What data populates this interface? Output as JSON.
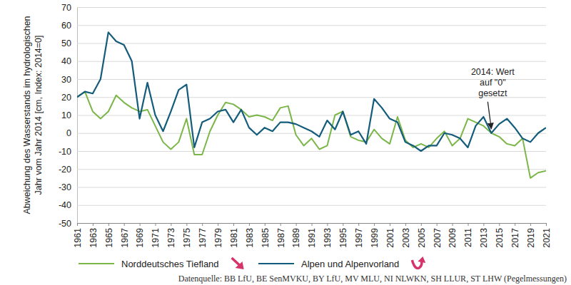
{
  "chart_data": {
    "type": "line",
    "y_label": [
      "Abweichung des Wasserstands im hydrologischen",
      "Jahr vom Jahr 2014 [cm, Index: 2014=0]"
    ],
    "x": [
      1961,
      1962,
      1963,
      1964,
      1965,
      1966,
      1967,
      1968,
      1969,
      1970,
      1971,
      1972,
      1973,
      1974,
      1975,
      1976,
      1977,
      1978,
      1979,
      1980,
      1981,
      1982,
      1983,
      1984,
      1985,
      1986,
      1987,
      1988,
      1989,
      1990,
      1991,
      1992,
      1993,
      1994,
      1995,
      1996,
      1997,
      1998,
      1999,
      2000,
      2001,
      2002,
      2003,
      2004,
      2005,
      2006,
      2007,
      2008,
      2009,
      2010,
      2011,
      2012,
      2013,
      2014,
      2015,
      2016,
      2017,
      2018,
      2019,
      2020,
      2021
    ],
    "series": [
      {
        "name": "Norddeutsches Tiefland",
        "color": "#7ab648",
        "values": [
          20,
          23,
          12,
          8,
          12,
          21,
          17,
          14,
          12,
          13,
          4,
          -5,
          -9,
          -5,
          8,
          -12,
          -12,
          1,
          10,
          17,
          16,
          13,
          9,
          10,
          9,
          7,
          14,
          15,
          -1,
          -7,
          -3,
          -9,
          -7,
          10,
          12,
          -2,
          -4,
          -5,
          2,
          -3,
          -6,
          9,
          -4,
          -8,
          -6,
          -8,
          -3,
          1,
          -7,
          -3,
          8,
          6,
          4,
          0,
          -2,
          -6,
          -7,
          -3,
          -25,
          -22,
          -21
        ]
      },
      {
        "name": "Alpen und Alpenvorland",
        "color": "#135c7c",
        "values": [
          20,
          23,
          22,
          30,
          56,
          51,
          49,
          40,
          8,
          28,
          10,
          1,
          12,
          24,
          27,
          -8,
          6,
          8,
          12,
          13,
          6,
          13,
          3,
          -1,
          3,
          1,
          6,
          6,
          5,
          3,
          1,
          -2,
          7,
          2,
          12,
          -1,
          1,
          -6,
          19,
          14,
          8,
          6,
          -5,
          -7,
          -10,
          -7,
          -7,
          0,
          -1,
          -3,
          -8,
          4,
          9,
          0,
          5,
          8,
          3,
          -3,
          -5,
          0,
          3
        ]
      }
    ],
    "xlim": [
      1961,
      2021
    ],
    "xticks": [
      1961,
      1963,
      1965,
      1967,
      1969,
      1971,
      1973,
      1975,
      1977,
      1979,
      1981,
      1983,
      1985,
      1987,
      1989,
      1991,
      1993,
      1995,
      1997,
      1999,
      2001,
      2003,
      2005,
      2007,
      2009,
      2011,
      2013,
      2015,
      2017,
      2019,
      2021
    ],
    "ylim": [
      -50,
      70
    ],
    "yticks": [
      -50,
      -40,
      -30,
      -20,
      -10,
      0,
      10,
      20,
      30,
      40,
      50,
      60,
      70
    ],
    "grid": true,
    "annotation": {
      "text": [
        "2014: Wert",
        "auf \"0\"",
        "gesetzt"
      ],
      "x": 2014,
      "y": 0
    },
    "source": "Datenquelle: BB LfU, BE SenMVKU, BY LfU, MV MLU, NI NLWKN, SH LLUR, ST LHW (Pegelmessungen)"
  }
}
